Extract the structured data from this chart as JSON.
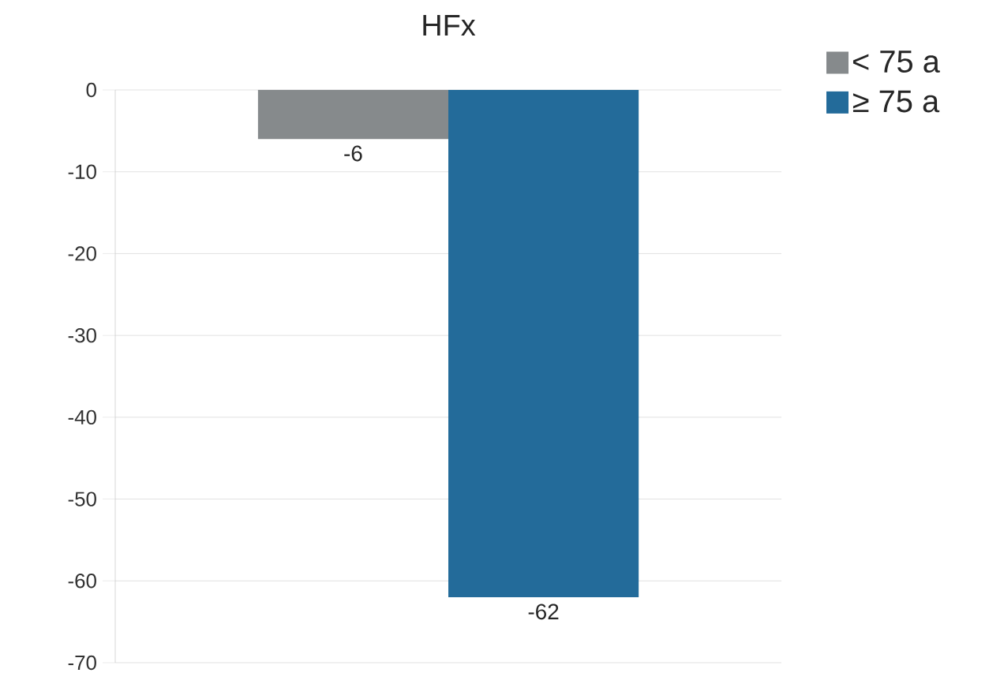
{
  "chart_data": {
    "type": "bar",
    "title": "HFx",
    "categories": [
      null
    ],
    "series": [
      {
        "name": "< 75 a",
        "color": "#868a8c",
        "values": [
          -6
        ]
      },
      {
        "name": "≥ 75 a",
        "color": "#236b9a",
        "values": [
          -62
        ]
      }
    ],
    "ylim": [
      -70,
      0
    ],
    "yticks": [
      0,
      -10,
      -20,
      -30,
      -40,
      -50,
      -60,
      -70
    ],
    "grid": "y",
    "legend": "top right",
    "data_labels": true
  }
}
